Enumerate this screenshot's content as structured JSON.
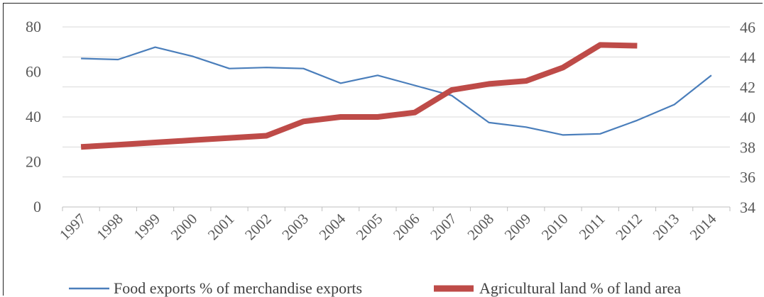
{
  "chart_data": {
    "type": "line",
    "x": [
      "1997",
      "1998",
      "1999",
      "2000",
      "2001",
      "2002",
      "2003",
      "2004",
      "2005",
      "2006",
      "2007",
      "2008",
      "2009",
      "2010",
      "2011",
      "2012",
      "2013",
      "2014"
    ],
    "series": [
      {
        "name": "Food exports % of merchandise exports",
        "axis": "left",
        "color": "#4a7ebb",
        "values": [
          66,
          65.5,
          71,
          67,
          61.5,
          62,
          61.5,
          55,
          58.5,
          54,
          49.5,
          37.5,
          35.5,
          32,
          32.5,
          null,
          45.5,
          58.5
        ],
        "x_override": {
          "15": 38.5
        }
      },
      {
        "name": "Agricultural land % of land area",
        "axis": "right",
        "color": "#be4b48",
        "values": [
          38.0,
          38.15,
          38.3,
          38.45,
          38.6,
          38.75,
          39.7,
          40.0,
          40.0,
          40.3,
          41.8,
          42.2,
          42.4,
          43.3,
          44.8,
          44.75,
          null,
          null
        ]
      }
    ],
    "left_axis": {
      "ylim": [
        0,
        80
      ],
      "ticks": [
        "0",
        "20",
        "40",
        "60",
        "80"
      ]
    },
    "right_axis": {
      "ylim": [
        34,
        46
      ],
      "ticks": [
        "34",
        "36",
        "38",
        "40",
        "42",
        "44",
        "46"
      ]
    },
    "grid": true,
    "legend_position": "bottom"
  }
}
